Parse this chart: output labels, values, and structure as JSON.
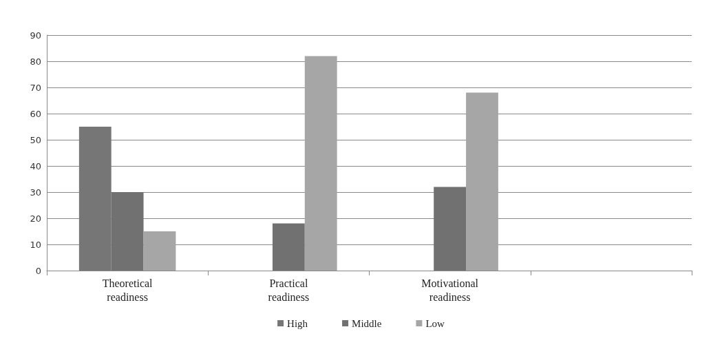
{
  "chart_data": {
    "type": "bar",
    "categories": [
      "Theoretical\nreadiness",
      "Practical\nreadiness",
      "Motivational\nreadiness",
      null
    ],
    "series": [
      {
        "name": "High",
        "color": "#767676",
        "values": [
          55,
          null,
          null,
          null
        ]
      },
      {
        "name": "Middle",
        "color": "#717171",
        "values": [
          30,
          18,
          32,
          null
        ]
      },
      {
        "name": "Low",
        "color": "#a6a6a6",
        "values": [
          15,
          82,
          68,
          null
        ]
      }
    ],
    "ylim": [
      0,
      90
    ],
    "yticks": [
      0,
      10,
      20,
      30,
      40,
      50,
      60,
      70,
      80,
      90
    ],
    "grid": "y",
    "legend": "bottom"
  }
}
